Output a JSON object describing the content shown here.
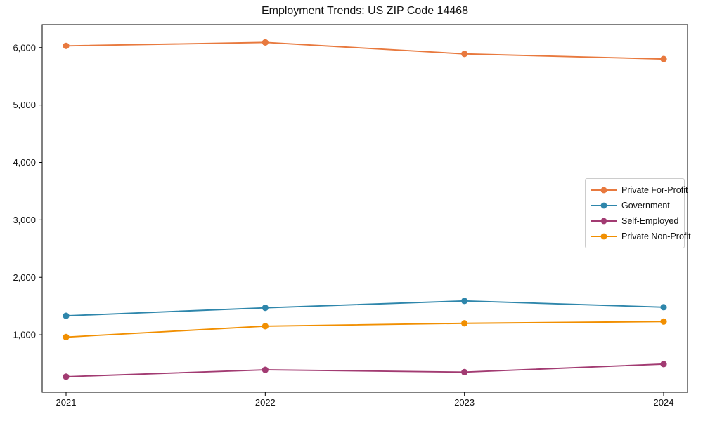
{
  "chart_data": {
    "type": "line",
    "title": "Employment Trends: US ZIP Code 14468",
    "x": [
      "2021",
      "2022",
      "2023",
      "2024"
    ],
    "series": [
      {
        "name": "Private For-Profit",
        "color": "#E8793E",
        "values": [
          6030,
          6090,
          5890,
          5800
        ]
      },
      {
        "name": "Government",
        "color": "#2E86AB",
        "values": [
          1330,
          1470,
          1590,
          1480
        ]
      },
      {
        "name": "Self-Employed",
        "color": "#A23B72",
        "values": [
          270,
          390,
          350,
          490
        ]
      },
      {
        "name": "Private Non-Profit",
        "color": "#F18F01",
        "values": [
          960,
          1150,
          1200,
          1230
        ]
      }
    ],
    "xlabel": "",
    "ylabel": "",
    "ylim": [
      0,
      6400
    ],
    "yticks": [
      1000,
      2000,
      3000,
      4000,
      5000,
      6000
    ],
    "ytick_labels": [
      "1,000",
      "2,000",
      "3,000",
      "4,000",
      "5,000",
      "6,000"
    ],
    "grid": false,
    "legend_position": "center right",
    "axis_color": "#000000",
    "background": "#FFFFFF",
    "marker": "circle"
  }
}
